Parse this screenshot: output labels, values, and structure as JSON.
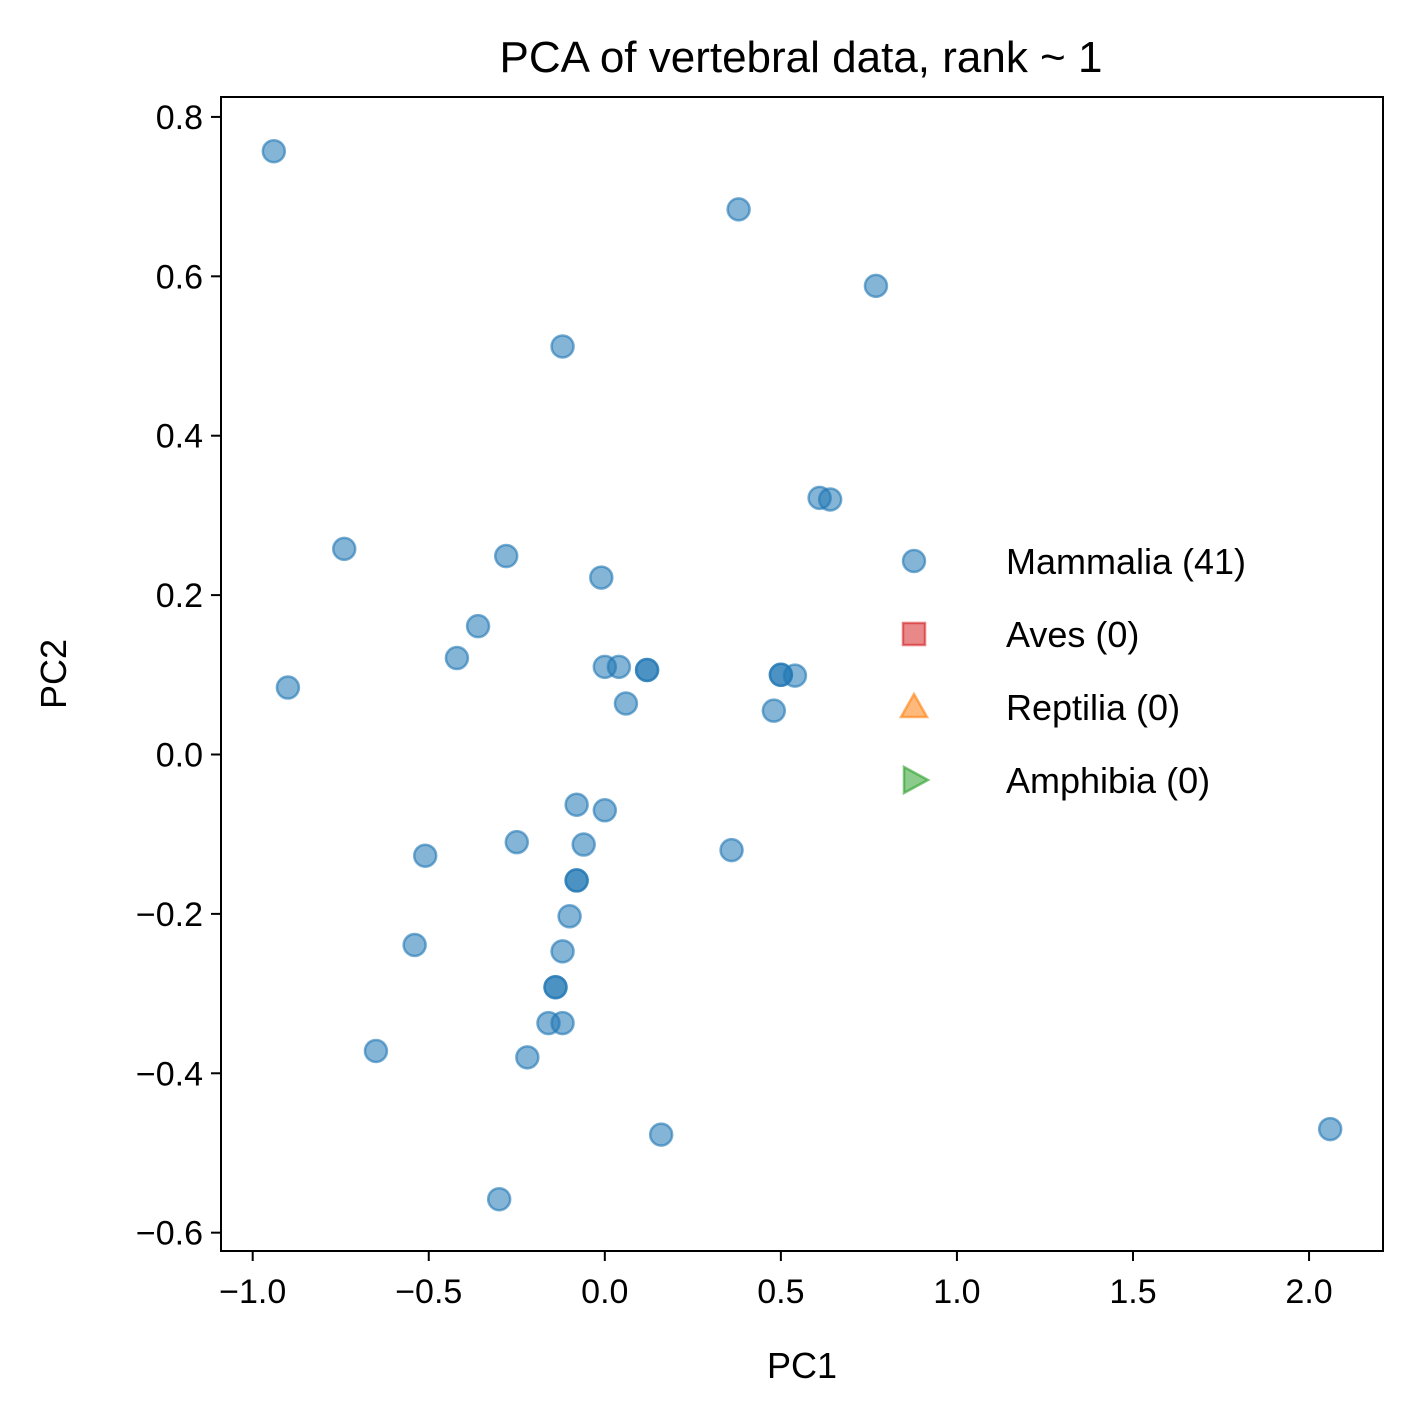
{
  "chart_data": {
    "type": "scatter",
    "title": "PCA of vertebral data, rank ~ 1",
    "xlabel": "PC1",
    "ylabel": "PC2",
    "xlim": [
      -1.09,
      2.21
    ],
    "ylim": [
      -0.623,
      0.825
    ],
    "xticks": [
      -1.0,
      -0.5,
      0.0,
      0.5,
      1.0,
      1.5,
      2.0
    ],
    "xtick_labels": [
      "−1.0",
      "−0.5",
      "0.0",
      "0.5",
      "1.0",
      "1.5",
      "2.0"
    ],
    "yticks": [
      -0.6,
      -0.4,
      -0.2,
      0.0,
      0.2,
      0.4,
      0.6,
      0.8
    ],
    "ytick_labels": [
      "−0.6",
      "−0.4",
      "−0.2",
      "0.0",
      "0.2",
      "0.4",
      "0.6",
      "0.8"
    ],
    "grid": false,
    "legend_position": "center-right",
    "series": [
      {
        "name": "Mammalia (41)",
        "marker": "circle",
        "color": "#1f77b4",
        "points": [
          [
            -0.94,
            0.757
          ],
          [
            0.38,
            0.684
          ],
          [
            0.77,
            0.588
          ],
          [
            -0.12,
            0.512
          ],
          [
            0.61,
            0.322
          ],
          [
            0.64,
            0.32
          ],
          [
            -0.74,
            0.258
          ],
          [
            -0.28,
            0.249
          ],
          [
            -0.01,
            0.222
          ],
          [
            -0.36,
            0.161
          ],
          [
            -0.42,
            0.121
          ],
          [
            0.0,
            0.11
          ],
          [
            0.04,
            0.11
          ],
          [
            0.12,
            0.106
          ],
          [
            0.12,
            0.106
          ],
          [
            0.5,
            0.1
          ],
          [
            0.5,
            0.1
          ],
          [
            0.54,
            0.099
          ],
          [
            -0.9,
            0.084
          ],
          [
            0.06,
            0.064
          ],
          [
            0.48,
            0.055
          ],
          [
            -0.08,
            -0.063
          ],
          [
            0.0,
            -0.07
          ],
          [
            -0.25,
            -0.11
          ],
          [
            -0.06,
            -0.113
          ],
          [
            0.36,
            -0.12
          ],
          [
            -0.51,
            -0.127
          ],
          [
            -0.08,
            -0.158
          ],
          [
            -0.08,
            -0.158
          ],
          [
            -0.1,
            -0.203
          ],
          [
            -0.54,
            -0.239
          ],
          [
            -0.12,
            -0.247
          ],
          [
            -0.14,
            -0.292
          ],
          [
            -0.14,
            -0.292
          ],
          [
            -0.16,
            -0.337
          ],
          [
            -0.12,
            -0.337
          ],
          [
            -0.65,
            -0.372
          ],
          [
            -0.22,
            -0.38
          ],
          [
            0.16,
            -0.477
          ],
          [
            2.06,
            -0.47
          ],
          [
            -0.3,
            -0.558
          ]
        ]
      },
      {
        "name": "Aves (0)",
        "marker": "square",
        "color": "#d62728",
        "points": []
      },
      {
        "name": "Reptilia (0)",
        "marker": "triangle-up",
        "color": "#ff7f0e",
        "points": []
      },
      {
        "name": "Amphibia (0)",
        "marker": "triangle-right",
        "color": "#2ca02c",
        "points": []
      }
    ]
  }
}
